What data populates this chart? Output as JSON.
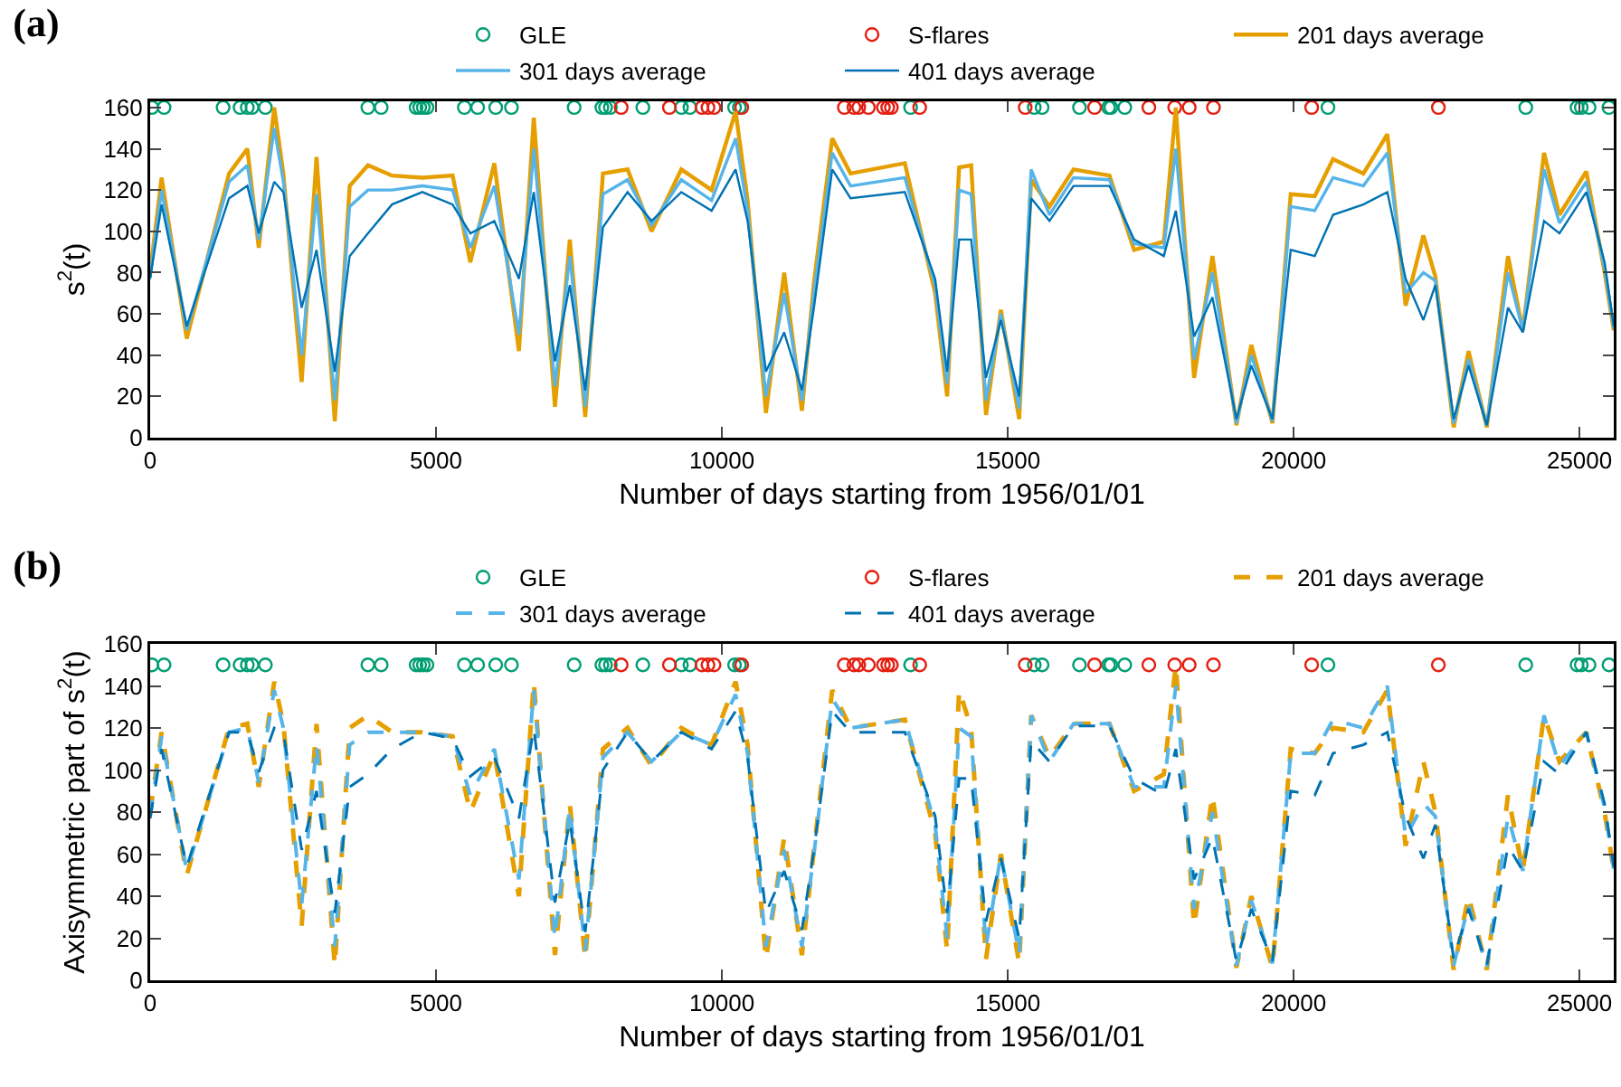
{
  "chart_data": [
    {
      "type": "line",
      "title": "(a)",
      "xlabel": "Number of days starting from 1956/01/01",
      "ylabel": "s$^{2}$(t)",
      "xlim": [
        0,
        25600
      ],
      "xticks": [
        0,
        5000,
        10000,
        15000,
        20000,
        25000
      ],
      "ylim": [
        0,
        163
      ],
      "yticks": [
        0,
        20,
        40,
        60,
        80,
        100,
        120,
        140,
        160
      ],
      "grid": false,
      "legend": "top right",
      "x": [
        0,
        200,
        640,
        1380,
        1700,
        1900,
        2170,
        2330,
        2650,
        2910,
        3230,
        3490,
        3810,
        4230,
        4760,
        5290,
        5600,
        6020,
        6450,
        6710,
        7080,
        7340,
        7610,
        7920,
        8350,
        8770,
        9290,
        9820,
        10240,
        10450,
        10770,
        11090,
        11400,
        11610,
        11930,
        12250,
        13200,
        13730,
        13940,
        14150,
        14360,
        14620,
        14880,
        15200,
        15410,
        15730,
        16150,
        16780,
        17210,
        17730,
        17940,
        18260,
        18580,
        19000,
        19260,
        19630,
        19950,
        20370,
        20690,
        21220,
        21640,
        21960,
        22270,
        22480,
        22800,
        23060,
        23380,
        23750,
        24010,
        24380,
        24650,
        25120,
        25440,
        25600
      ],
      "series": [
        {
          "name": "GLE",
          "type": "scatter",
          "marker": "circle",
          "color": "#009e73",
          "x": [
            32,
            243,
            1276,
            1573,
            1699,
            1782,
            2015,
            3808,
            4041,
            4652,
            4715,
            4778,
            4842,
            5496,
            5728,
            6044,
            6319,
            7416,
            7901,
            7965,
            8049,
            8618,
            9293,
            9441,
            10222,
            10306,
            13301,
            15464,
            15601,
            16255,
            16762,
            16804,
            17047,
            20601,
            24061,
            24958,
            25032,
            25168,
            25516
          ],
          "values": [
            160,
            160,
            160,
            160,
            160,
            160,
            160,
            160,
            160,
            160,
            160,
            160,
            160,
            160,
            160,
            160,
            160,
            160,
            160,
            160,
            160,
            160,
            160,
            160,
            160,
            160,
            160,
            160,
            160,
            160,
            160,
            160,
            160,
            160,
            160,
            160,
            160,
            160,
            160
          ]
        },
        {
          "name": "S-flares",
          "type": "scatter",
          "marker": "circle",
          "color": "#e51e10",
          "x": [
            8239,
            9082,
            9652,
            9757,
            9863,
            10348,
            12142,
            12310,
            12394,
            12563,
            12826,
            12901,
            12965,
            13460,
            15306,
            16519,
            17468,
            17921,
            18174,
            18598,
            20316,
            22532
          ],
          "values": [
            160,
            160,
            160,
            160,
            160,
            160,
            160,
            160,
            160,
            160,
            160,
            160,
            160,
            160,
            160,
            160,
            160,
            160,
            160,
            160,
            160,
            160
          ]
        },
        {
          "name": "201 days average",
          "line_style": "solid",
          "color": "#e69f00",
          "values": [
            80,
            126,
            48,
            128,
            140,
            92,
            160,
            128,
            27,
            136,
            8,
            122,
            132,
            127,
            126,
            127,
            85,
            133,
            42,
            155,
            15,
            96,
            10,
            128,
            130,
            100,
            130,
            120,
            158,
            115,
            12,
            80,
            13,
            75,
            145,
            128,
            133,
            70,
            20,
            131,
            132,
            11,
            62,
            9,
            125,
            112,
            130,
            127,
            91,
            95,
            160,
            29,
            88,
            6,
            45,
            7,
            118,
            117,
            135,
            128,
            147,
            64,
            98,
            78,
            5,
            42,
            5,
            88,
            52,
            138,
            108,
            129,
            80,
            52
          ]
        },
        {
          "name": "301 days average",
          "line_style": "solid",
          "color": "#56b4e9",
          "values": [
            78,
            120,
            52,
            124,
            132,
            96,
            150,
            124,
            40,
            118,
            18,
            112,
            120,
            120,
            122,
            120,
            92,
            122,
            50,
            140,
            25,
            88,
            15,
            118,
            125,
            103,
            125,
            115,
            145,
            110,
            20,
            70,
            18,
            70,
            138,
            122,
            126,
            74,
            26,
            120,
            118,
            18,
            60,
            14,
            130,
            108,
            126,
            125,
            94,
            92,
            140,
            38,
            80,
            7,
            40,
            8,
            112,
            110,
            126,
            122,
            138,
            70,
            80,
            76,
            7,
            38,
            6,
            80,
            52,
            130,
            104,
            124,
            82,
            53
          ]
        },
        {
          "name": "401 days average",
          "line_style": "solid",
          "color": "#0072b2",
          "values": [
            77,
            113,
            54,
            116,
            122,
            99,
            124,
            119,
            63,
            91,
            32,
            88,
            99,
            113,
            119,
            113,
            99,
            105,
            77,
            119,
            37,
            74,
            23,
            102,
            119,
            105,
            119,
            110,
            130,
            105,
            32,
            51,
            23,
            63,
            130,
            116,
            119,
            77,
            32,
            96,
            96,
            29,
            57,
            20,
            116,
            105,
            122,
            122,
            96,
            88,
            110,
            49,
            68,
            9,
            35,
            9,
            91,
            88,
            108,
            113,
            119,
            77,
            57,
            74,
            9,
            35,
            6,
            63,
            51,
            105,
            99,
            119,
            85,
            54
          ]
        }
      ]
    },
    {
      "type": "line",
      "title": "(b)",
      "xlabel": "Number of days starting from 1956/01/01",
      "ylabel": "Axisymmetric part of s$^{2}$(t)",
      "xlim": [
        0,
        25600
      ],
      "xticks": [
        0,
        5000,
        10000,
        15000,
        20000,
        25000
      ],
      "ylim": [
        0,
        160
      ],
      "yticks": [
        0,
        20,
        40,
        60,
        80,
        100,
        120,
        140,
        160
      ],
      "grid": false,
      "legend": "top right",
      "x": [
        0,
        200,
        640,
        1380,
        1700,
        1900,
        2170,
        2330,
        2650,
        2910,
        3230,
        3490,
        3810,
        4230,
        4760,
        5290,
        5600,
        6020,
        6450,
        6710,
        7080,
        7340,
        7610,
        7920,
        8350,
        8770,
        9290,
        9820,
        10240,
        10450,
        10770,
        11090,
        11400,
        11610,
        11930,
        12250,
        13200,
        13730,
        13940,
        14150,
        14360,
        14620,
        14880,
        15200,
        15410,
        15730,
        16150,
        16780,
        17210,
        17730,
        17940,
        18260,
        18580,
        19000,
        19260,
        19630,
        19950,
        20370,
        20690,
        21220,
        21640,
        21960,
        22270,
        22480,
        22800,
        23060,
        23380,
        23750,
        24010,
        24380,
        24650,
        25120,
        25440,
        25600
      ],
      "series": [
        {
          "name": "GLE",
          "type": "scatter",
          "marker": "circle",
          "color": "#009e73",
          "x": [
            32,
            243,
            1276,
            1573,
            1699,
            1782,
            2015,
            3808,
            4041,
            4652,
            4715,
            4778,
            4842,
            5496,
            5728,
            6044,
            6319,
            7416,
            7901,
            7965,
            8049,
            8618,
            9293,
            9441,
            10222,
            10306,
            13301,
            15464,
            15601,
            16255,
            16762,
            16804,
            17047,
            20601,
            24061,
            24958,
            25032,
            25168,
            25516
          ],
          "values": [
            150,
            150,
            150,
            150,
            150,
            150,
            150,
            150,
            150,
            150,
            150,
            150,
            150,
            150,
            150,
            150,
            150,
            150,
            150,
            150,
            150,
            150,
            150,
            150,
            150,
            150,
            150,
            150,
            150,
            150,
            150,
            150,
            150,
            150,
            150,
            150,
            150,
            150,
            150
          ]
        },
        {
          "name": "S-flares",
          "type": "scatter",
          "marker": "circle",
          "color": "#e51e10",
          "x": [
            8239,
            9082,
            9652,
            9757,
            9863,
            10348,
            12142,
            12310,
            12394,
            12563,
            12826,
            12901,
            12965,
            13460,
            15306,
            16519,
            17468,
            17921,
            18174,
            18598,
            20316,
            22532
          ],
          "values": [
            150,
            150,
            150,
            150,
            150,
            150,
            150,
            150,
            150,
            150,
            150,
            150,
            150,
            150,
            150,
            150,
            150,
            150,
            150,
            150,
            150,
            150
          ]
        },
        {
          "name": "201 days average",
          "line_style": "dashed",
          "color": "#e69f00",
          "values": [
            80,
            118,
            50,
            120,
            122,
            92,
            142,
            122,
            26,
            122,
            7,
            120,
            126,
            118,
            118,
            116,
            80,
            108,
            40,
            142,
            12,
            84,
            10,
            110,
            120,
            102,
            120,
            112,
            142,
            112,
            10,
            68,
            12,
            62,
            138,
            120,
            124,
            70,
            14,
            138,
            120,
            10,
            60,
            8,
            126,
            106,
            122,
            122,
            90,
            98,
            150,
            26,
            88,
            6,
            40,
            6,
            110,
            108,
            120,
            118,
            138,
            64,
            104,
            80,
            5,
            40,
            5,
            88,
            52,
            126,
            104,
            118,
            80,
            52
          ]
        },
        {
          "name": "301 days average",
          "line_style": "dashed",
          "color": "#56b4e9",
          "values": [
            78,
            116,
            52,
            118,
            120,
            94,
            138,
            120,
            36,
            112,
            16,
            112,
            118,
            118,
            118,
            116,
            88,
            110,
            48,
            138,
            20,
            82,
            14,
            106,
            118,
            104,
            118,
            112,
            136,
            108,
            16,
            62,
            16,
            60,
            134,
            120,
            124,
            74,
            20,
            120,
            116,
            16,
            60,
            12,
            126,
            104,
            122,
            122,
            92,
            92,
            140,
            34,
            80,
            7,
            38,
            8,
            108,
            108,
            124,
            120,
            140,
            68,
            84,
            78,
            7,
            36,
            6,
            78,
            52,
            126,
            102,
            118,
            82,
            53
          ]
        },
        {
          "name": "401 days average",
          "line_style": "dashed",
          "color": "#0072b2",
          "values": [
            77,
            110,
            54,
            118,
            118,
            99,
            120,
            118,
            62,
            90,
            32,
            92,
            98,
            110,
            118,
            115,
            97,
            106,
            77,
            120,
            37,
            76,
            23,
            100,
            118,
            104,
            118,
            110,
            128,
            106,
            32,
            52,
            24,
            62,
            128,
            118,
            118,
            78,
            32,
            96,
            96,
            28,
            58,
            20,
            114,
            104,
            121,
            121,
            96,
            88,
            110,
            48,
            68,
            9,
            34,
            9,
            90,
            88,
            108,
            112,
            118,
            78,
            58,
            74,
            10,
            34,
            7,
            64,
            52,
            104,
            98,
            118,
            84,
            54
          ]
        }
      ]
    }
  ]
}
